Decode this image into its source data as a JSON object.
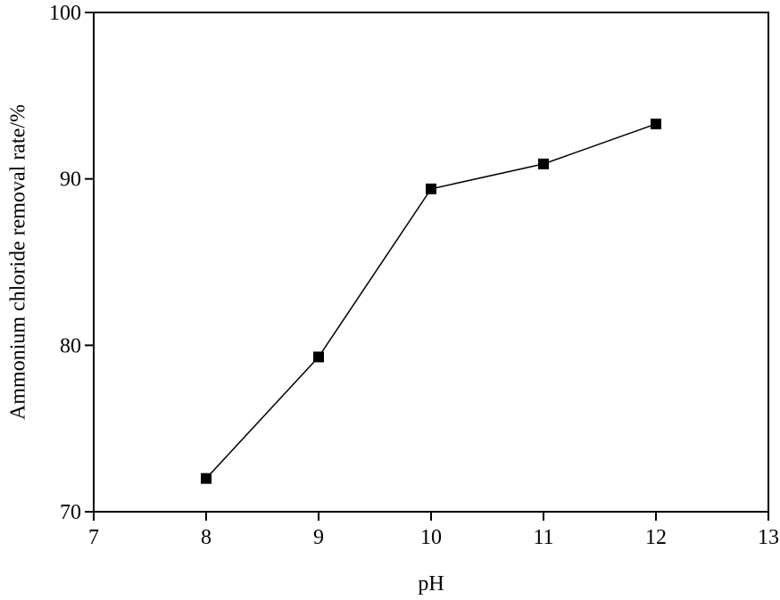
{
  "chart_data": {
    "type": "line",
    "x_label": "pH",
    "y_label": "Ammonium chloride removal rate/%",
    "x": [
      8,
      9,
      10,
      11,
      12
    ],
    "series": [
      {
        "color": "#000000",
        "values": [
          72.0,
          79.3,
          89.4,
          90.9,
          93.3
        ]
      }
    ],
    "xlim": [
      7,
      13
    ],
    "xticks": [
      7,
      8,
      9,
      10,
      11,
      12,
      13
    ],
    "ylim": [
      70,
      100
    ],
    "yticks": [
      70,
      80,
      90,
      100
    ],
    "grid": false
  }
}
